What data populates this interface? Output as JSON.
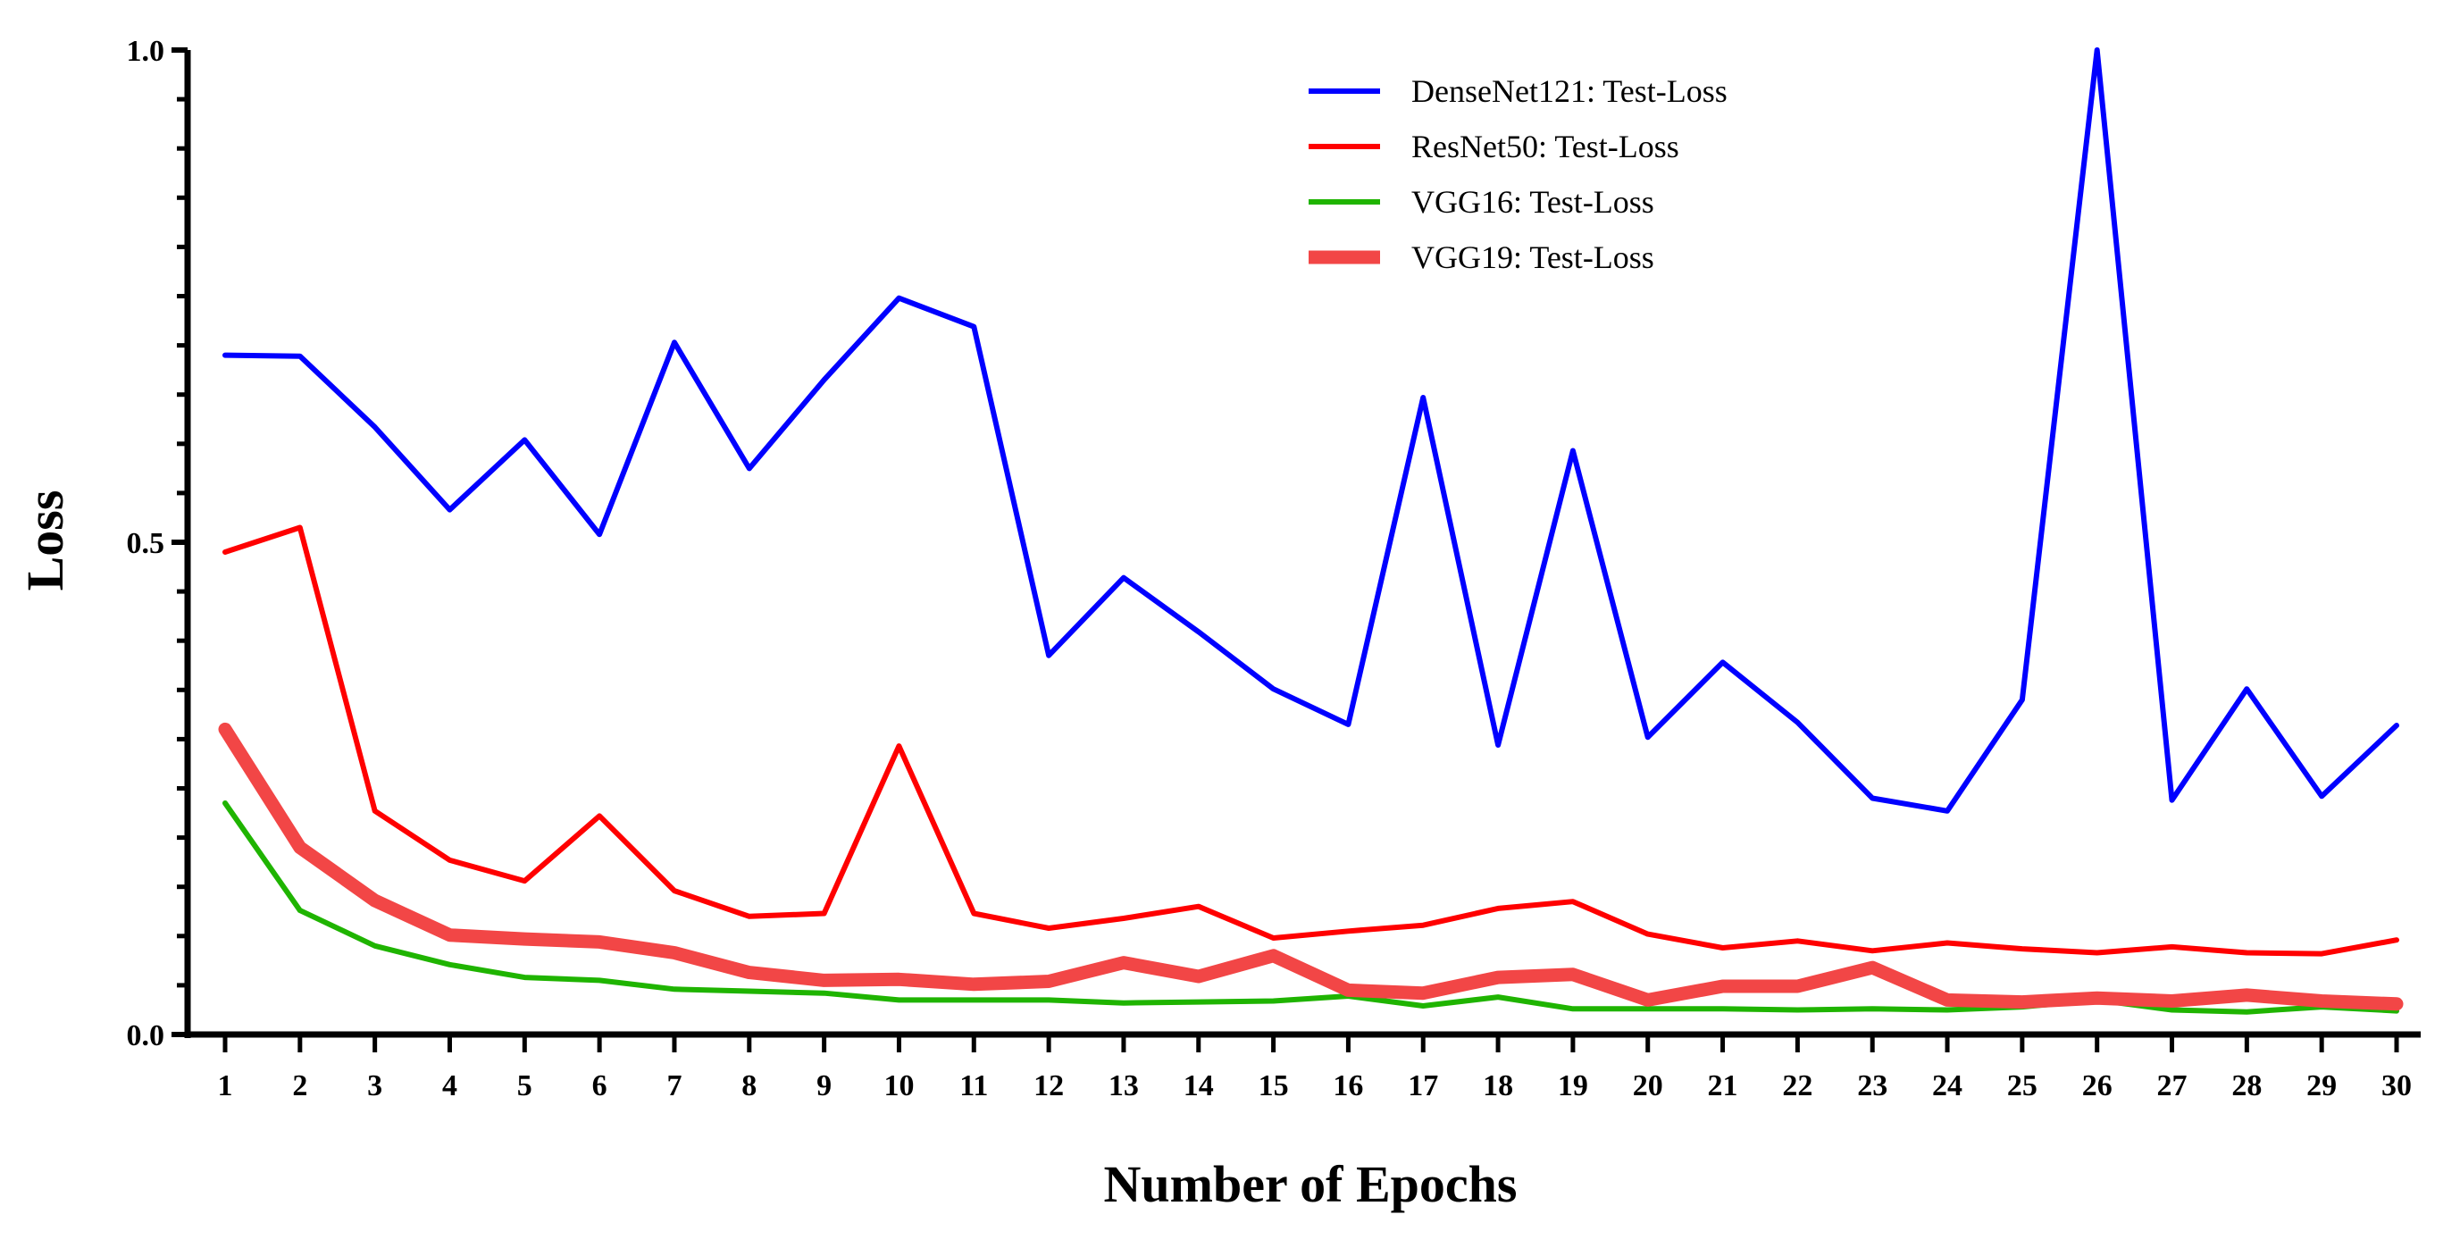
{
  "chart_data": {
    "type": "line",
    "title": "",
    "xlabel": "Number of Epochs",
    "ylabel": "Loss",
    "ylim": [
      0.0,
      1.0
    ],
    "yticks": [
      0.0,
      0.5,
      1.0
    ],
    "ytick_labels": [
      "0.0",
      "0.5",
      "1.0"
    ],
    "x": [
      1,
      2,
      3,
      4,
      5,
      6,
      7,
      8,
      9,
      10,
      11,
      12,
      13,
      14,
      15,
      16,
      17,
      18,
      19,
      20,
      21,
      22,
      23,
      24,
      25,
      26,
      27,
      28,
      29,
      30
    ],
    "x_labels": [
      "1",
      "2",
      "3",
      "4",
      "5",
      "6",
      "7",
      "8",
      "9",
      "10",
      "11",
      "12",
      "13",
      "14",
      "15",
      "16",
      "17",
      "18",
      "19",
      "20",
      "21",
      "22",
      "23",
      "24",
      "25",
      "26",
      "27",
      "28",
      "29",
      "30"
    ],
    "grid": false,
    "legend_position": "top-center",
    "series": [
      {
        "name": "DenseNet121: Test-Loss",
        "color": "#0000ff",
        "values": [
          0.69,
          0.689,
          0.617,
          0.533,
          0.604,
          0.508,
          0.703,
          0.575,
          0.665,
          0.748,
          0.719,
          0.385,
          0.464,
          0.409,
          0.351,
          0.315,
          0.647,
          0.294,
          0.593,
          0.302,
          0.378,
          0.317,
          0.24,
          0.227,
          0.34,
          1.0,
          0.238,
          0.351,
          0.242,
          0.314
        ]
      },
      {
        "name": "ResNet50: Test-Loss",
        "color": "#ff0000",
        "values": [
          0.49,
          0.515,
          0.227,
          0.177,
          0.156,
          0.222,
          0.146,
          0.12,
          0.123,
          0.293,
          0.123,
          0.108,
          0.118,
          0.13,
          0.098,
          0.105,
          0.111,
          0.128,
          0.135,
          0.102,
          0.088,
          0.095,
          0.085,
          0.093,
          0.087,
          0.083,
          0.089,
          0.083,
          0.082,
          0.096
        ]
      },
      {
        "name": "VGG16: Test-Loss",
        "color": "#1fb400",
        "values": [
          0.235,
          0.126,
          0.09,
          0.071,
          0.058,
          0.055,
          0.046,
          0.044,
          0.042,
          0.035,
          0.035,
          0.035,
          0.032,
          0.033,
          0.034,
          0.039,
          0.029,
          0.038,
          0.026,
          0.026,
          0.026,
          0.025,
          0.026,
          0.025,
          0.028,
          0.035,
          0.025,
          0.023,
          0.028,
          0.024
        ]
      },
      {
        "name": "VGG19: Test-Loss",
        "color": "#f24646",
        "values": [
          0.31,
          0.19,
          0.136,
          0.101,
          0.097,
          0.094,
          0.083,
          0.063,
          0.055,
          0.056,
          0.051,
          0.054,
          0.073,
          0.059,
          0.08,
          0.045,
          0.042,
          0.058,
          0.061,
          0.035,
          0.049,
          0.049,
          0.068,
          0.035,
          0.033,
          0.037,
          0.034,
          0.04,
          0.034,
          0.031
        ]
      }
    ]
  }
}
